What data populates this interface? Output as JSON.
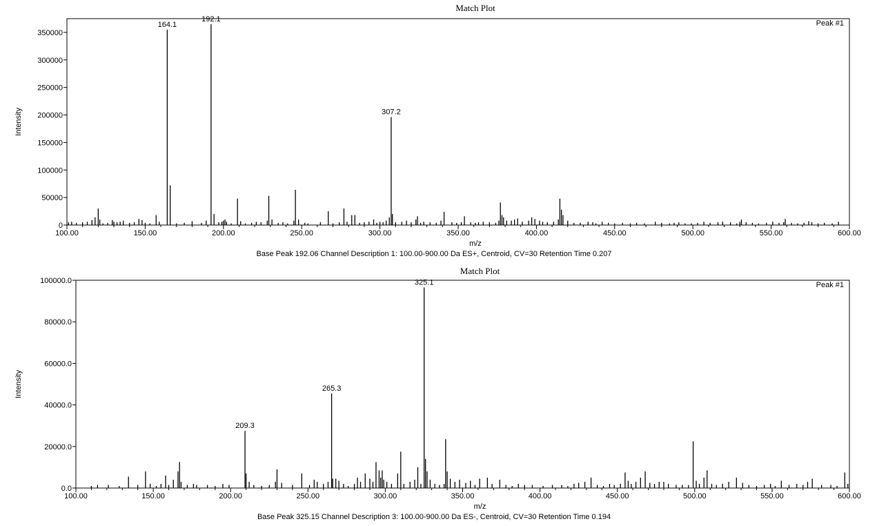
{
  "chart_data": [
    {
      "type": "bar",
      "title": "Match Plot",
      "peak_label": "Peak #1",
      "xlabel": "m/z",
      "ylabel": "Intensity",
      "footer": "Base Peak 192.06 Channel Description 1: 100.00-900.00 Da ES+, Centroid, CV=30 Retention Time 0.207",
      "xlim": [
        100,
        600
      ],
      "ylim": [
        0,
        375000
      ],
      "x_ticks": [
        100,
        150,
        200,
        250,
        300,
        350,
        400,
        450,
        500,
        550,
        600
      ],
      "x_tick_labels": [
        "100.00",
        "150.00",
        "200.00",
        "250.00",
        "300.00",
        "350.00",
        "400.00",
        "450.00",
        "500.00",
        "550.00",
        "600.00"
      ],
      "y_ticks": [
        0,
        50000,
        100000,
        150000,
        200000,
        250000,
        300000,
        350000
      ],
      "y_tick_labels": [
        "0",
        "50000",
        "100000",
        "150000",
        "200000",
        "250000",
        "300000",
        "350000"
      ],
      "labeled_peaks": [
        {
          "x": 164.1,
          "y": 355000,
          "label": "164.1"
        },
        {
          "x": 192.1,
          "y": 365000,
          "label": "192.1"
        },
        {
          "x": 307.2,
          "y": 196000,
          "label": "307.2"
        }
      ],
      "peaks": [
        [
          101,
          5000
        ],
        [
          103,
          6000
        ],
        [
          106,
          4000
        ],
        [
          110,
          5000
        ],
        [
          113,
          6000
        ],
        [
          116,
          9000
        ],
        [
          118,
          14000
        ],
        [
          120,
          30000
        ],
        [
          121,
          10000
        ],
        [
          123,
          3000
        ],
        [
          126,
          4000
        ],
        [
          129,
          9000
        ],
        [
          130,
          6000
        ],
        [
          132,
          5000
        ],
        [
          134,
          6000
        ],
        [
          136,
          8000
        ],
        [
          140,
          4000
        ],
        [
          143,
          5000
        ],
        [
          146,
          11000
        ],
        [
          148,
          9000
        ],
        [
          150,
          4000
        ],
        [
          153,
          3000
        ],
        [
          157,
          18000
        ],
        [
          159,
          6000
        ],
        [
          164.1,
          355000
        ],
        [
          166,
          72000
        ],
        [
          170,
          3000
        ],
        [
          175,
          4000
        ],
        [
          180,
          7000
        ],
        [
          186,
          4000
        ],
        [
          189,
          8000
        ],
        [
          192.1,
          365000
        ],
        [
          194,
          20000
        ],
        [
          197,
          5000
        ],
        [
          199,
          6000
        ],
        [
          200,
          8000
        ],
        [
          201,
          10000
        ],
        [
          202,
          6000
        ],
        [
          205,
          3000
        ],
        [
          209,
          48000
        ],
        [
          211,
          7000
        ],
        [
          214,
          3000
        ],
        [
          218,
          4000
        ],
        [
          221,
          6000
        ],
        [
          224,
          5000
        ],
        [
          228,
          8000
        ],
        [
          229,
          53000
        ],
        [
          231,
          10000
        ],
        [
          235,
          4000
        ],
        [
          238,
          5000
        ],
        [
          241,
          3000
        ],
        [
          245,
          8000
        ],
        [
          246,
          64000
        ],
        [
          248,
          10000
        ],
        [
          252,
          4000
        ],
        [
          254,
          3000
        ],
        [
          262,
          5000
        ],
        [
          267,
          25000
        ],
        [
          270,
          3000
        ],
        [
          274,
          5000
        ],
        [
          277,
          30000
        ],
        [
          279,
          6000
        ],
        [
          282,
          18000
        ],
        [
          284,
          18000
        ],
        [
          287,
          4000
        ],
        [
          290,
          5000
        ],
        [
          293,
          6000
        ],
        [
          296,
          10000
        ],
        [
          298,
          4000
        ],
        [
          300,
          6000
        ],
        [
          302,
          5000
        ],
        [
          304,
          8000
        ],
        [
          306,
          14000
        ],
        [
          307.2,
          196000
        ],
        [
          308,
          20000
        ],
        [
          310,
          5000
        ],
        [
          314,
          6000
        ],
        [
          317,
          8000
        ],
        [
          320,
          5000
        ],
        [
          323,
          10000
        ],
        [
          324,
          16000
        ],
        [
          326,
          4000
        ],
        [
          328,
          6000
        ],
        [
          332,
          5000
        ],
        [
          336,
          4000
        ],
        [
          339,
          8000
        ],
        [
          341,
          24000
        ],
        [
          346,
          5000
        ],
        [
          349,
          4000
        ],
        [
          352,
          5000
        ],
        [
          354,
          16000
        ],
        [
          358,
          5000
        ],
        [
          361,
          4000
        ],
        [
          363,
          5000
        ],
        [
          366,
          6000
        ],
        [
          370,
          5000
        ],
        [
          374,
          4000
        ],
        [
          376,
          8000
        ],
        [
          377,
          41000
        ],
        [
          378,
          18000
        ],
        [
          379,
          14000
        ],
        [
          381,
          8000
        ],
        [
          384,
          8000
        ],
        [
          386,
          10000
        ],
        [
          388,
          12000
        ],
        [
          391,
          6000
        ],
        [
          395,
          8000
        ],
        [
          397,
          14000
        ],
        [
          399,
          11000
        ],
        [
          402,
          8000
        ],
        [
          404,
          6000
        ],
        [
          407,
          5000
        ],
        [
          411,
          6000
        ],
        [
          414,
          10000
        ],
        [
          415,
          48000
        ],
        [
          416,
          28000
        ],
        [
          417,
          18000
        ],
        [
          420,
          8000
        ],
        [
          424,
          4000
        ],
        [
          428,
          4000
        ],
        [
          433,
          6000
        ],
        [
          436,
          5000
        ],
        [
          438,
          3000
        ],
        [
          442,
          6000
        ],
        [
          446,
          4000
        ],
        [
          450,
          3000
        ],
        [
          455,
          4000
        ],
        [
          460,
          3000
        ],
        [
          464,
          4000
        ],
        [
          469,
          3000
        ],
        [
          476,
          6000
        ],
        [
          480,
          4000
        ],
        [
          485,
          3000
        ],
        [
          488,
          4000
        ],
        [
          491,
          5000
        ],
        [
          495,
          3000
        ],
        [
          499,
          3000
        ],
        [
          503,
          4000
        ],
        [
          507,
          6000
        ],
        [
          511,
          4000
        ],
        [
          516,
          5000
        ],
        [
          519,
          6000
        ],
        [
          524,
          5000
        ],
        [
          528,
          3000
        ],
        [
          530,
          6000
        ],
        [
          531,
          10000
        ],
        [
          534,
          5000
        ],
        [
          538,
          4000
        ],
        [
          542,
          3000
        ],
        [
          547,
          4000
        ],
        [
          551,
          6000
        ],
        [
          555,
          4000
        ],
        [
          558,
          5000
        ],
        [
          559,
          11000
        ],
        [
          563,
          4000
        ],
        [
          567,
          3000
        ],
        [
          571,
          4000
        ],
        [
          574,
          7000
        ],
        [
          576,
          5000
        ],
        [
          580,
          3000
        ],
        [
          584,
          4000
        ],
        [
          589,
          3000
        ],
        [
          593,
          6000
        ]
      ]
    },
    {
      "type": "bar",
      "title": "Match Plot",
      "peak_label": "Peak #1",
      "xlabel": "m/z",
      "ylabel": "Intensity",
      "footer": "Base Peak 325.15 Channel Description 3: 100.00-900.00 Da ES-, Centroid, CV=30 Retention Time 0.194",
      "xlim": [
        100,
        600
      ],
      "ylim": [
        0,
        100000
      ],
      "x_ticks": [
        100,
        150,
        200,
        250,
        300,
        350,
        400,
        450,
        500,
        550,
        600
      ],
      "x_tick_labels": [
        "100.00",
        "150.00",
        "200.00",
        "250.00",
        "300.00",
        "350.00",
        "400.00",
        "450.00",
        "500.00",
        "550.00",
        "600.00"
      ],
      "y_ticks": [
        0,
        20000,
        40000,
        60000,
        80000,
        100000
      ],
      "y_tick_labels": [
        "0.0",
        "20000.0",
        "40000.0",
        "60000.0",
        "80000.0",
        "100000.0"
      ],
      "labeled_peaks": [
        {
          "x": 209.3,
          "y": 27500,
          "label": "209.3"
        },
        {
          "x": 265.3,
          "y": 45500,
          "label": "265.3"
        },
        {
          "x": 325.1,
          "y": 96500,
          "label": "325.1"
        }
      ],
      "peaks": [
        [
          110,
          1000
        ],
        [
          114,
          1500
        ],
        [
          121,
          1500
        ],
        [
          128,
          1000
        ],
        [
          134,
          5500
        ],
        [
          140,
          1500
        ],
        [
          145,
          8000
        ],
        [
          148,
          2000
        ],
        [
          152,
          1000
        ],
        [
          155,
          2000
        ],
        [
          158,
          6000
        ],
        [
          160,
          1500
        ],
        [
          163,
          4000
        ],
        [
          166,
          8000
        ],
        [
          167,
          12500
        ],
        [
          168,
          3000
        ],
        [
          172,
          1500
        ],
        [
          176,
          2000
        ],
        [
          178,
          1500
        ],
        [
          185,
          1500
        ],
        [
          190,
          1000
        ],
        [
          195,
          2000
        ],
        [
          199,
          1500
        ],
        [
          209.3,
          27500
        ],
        [
          210,
          7000
        ],
        [
          212,
          3000
        ],
        [
          215,
          1500
        ],
        [
          220,
          1000
        ],
        [
          225,
          1500
        ],
        [
          229,
          3000
        ],
        [
          230,
          9000
        ],
        [
          233,
          2500
        ],
        [
          240,
          1500
        ],
        [
          246,
          7000
        ],
        [
          251,
          1500
        ],
        [
          254,
          4000
        ],
        [
          256,
          3000
        ],
        [
          260,
          2000
        ],
        [
          263,
          3000
        ],
        [
          265.3,
          45500
        ],
        [
          266,
          4500
        ],
        [
          268,
          4500
        ],
        [
          270,
          3500
        ],
        [
          273,
          2000
        ],
        [
          276,
          1000
        ],
        [
          280,
          2000
        ],
        [
          282,
          5000
        ],
        [
          284,
          3000
        ],
        [
          287,
          7000
        ],
        [
          290,
          4500
        ],
        [
          292,
          3000
        ],
        [
          294,
          12500
        ],
        [
          296,
          8500
        ],
        [
          297,
          5000
        ],
        [
          298,
          8500
        ],
        [
          299,
          4000
        ],
        [
          301,
          3000
        ],
        [
          304,
          2000
        ],
        [
          308,
          7000
        ],
        [
          310,
          17500
        ],
        [
          312,
          2000
        ],
        [
          316,
          3000
        ],
        [
          319,
          4000
        ],
        [
          321,
          10000
        ],
        [
          323,
          2000
        ],
        [
          325.1,
          96500
        ],
        [
          326,
          14000
        ],
        [
          327,
          8000
        ],
        [
          329,
          4000
        ],
        [
          332,
          2000
        ],
        [
          335,
          1500
        ],
        [
          338,
          2000
        ],
        [
          339,
          23500
        ],
        [
          340,
          8000
        ],
        [
          342,
          4500
        ],
        [
          345,
          3000
        ],
        [
          348,
          4000
        ],
        [
          352,
          2500
        ],
        [
          355,
          3500
        ],
        [
          358,
          1500
        ],
        [
          361,
          4500
        ],
        [
          366,
          5000
        ],
        [
          369,
          2000
        ],
        [
          374,
          4000
        ],
        [
          378,
          1500
        ],
        [
          382,
          1000
        ],
        [
          386,
          2000
        ],
        [
          390,
          1500
        ],
        [
          395,
          1500
        ],
        [
          402,
          1000
        ],
        [
          408,
          1500
        ],
        [
          414,
          1500
        ],
        [
          418,
          1000
        ],
        [
          422,
          2000
        ],
        [
          425,
          2500
        ],
        [
          429,
          3000
        ],
        [
          433,
          5000
        ],
        [
          437,
          1500
        ],
        [
          441,
          1000
        ],
        [
          445,
          2000
        ],
        [
          448,
          1500
        ],
        [
          452,
          2000
        ],
        [
          455,
          7500
        ],
        [
          457,
          3500
        ],
        [
          459,
          2000
        ],
        [
          462,
          3000
        ],
        [
          465,
          5000
        ],
        [
          468,
          8000
        ],
        [
          471,
          2500
        ],
        [
          474,
          2000
        ],
        [
          477,
          3000
        ],
        [
          480,
          3000
        ],
        [
          483,
          2000
        ],
        [
          488,
          1500
        ],
        [
          492,
          1500
        ],
        [
          496,
          1500
        ],
        [
          499,
          22500
        ],
        [
          501,
          3500
        ],
        [
          503,
          2000
        ],
        [
          506,
          5000
        ],
        [
          508,
          8500
        ],
        [
          511,
          2000
        ],
        [
          514,
          1500
        ],
        [
          518,
          2000
        ],
        [
          522,
          3000
        ],
        [
          527,
          5000
        ],
        [
          531,
          2500
        ],
        [
          535,
          1500
        ],
        [
          540,
          1000
        ],
        [
          545,
          1500
        ],
        [
          549,
          2000
        ],
        [
          552,
          1000
        ],
        [
          556,
          3500
        ],
        [
          561,
          1500
        ],
        [
          566,
          2000
        ],
        [
          570,
          1500
        ],
        [
          573,
          3000
        ],
        [
          576,
          4500
        ],
        [
          582,
          1500
        ],
        [
          588,
          1500
        ],
        [
          592,
          1000
        ],
        [
          597,
          7500
        ],
        [
          599,
          2000
        ]
      ]
    }
  ]
}
